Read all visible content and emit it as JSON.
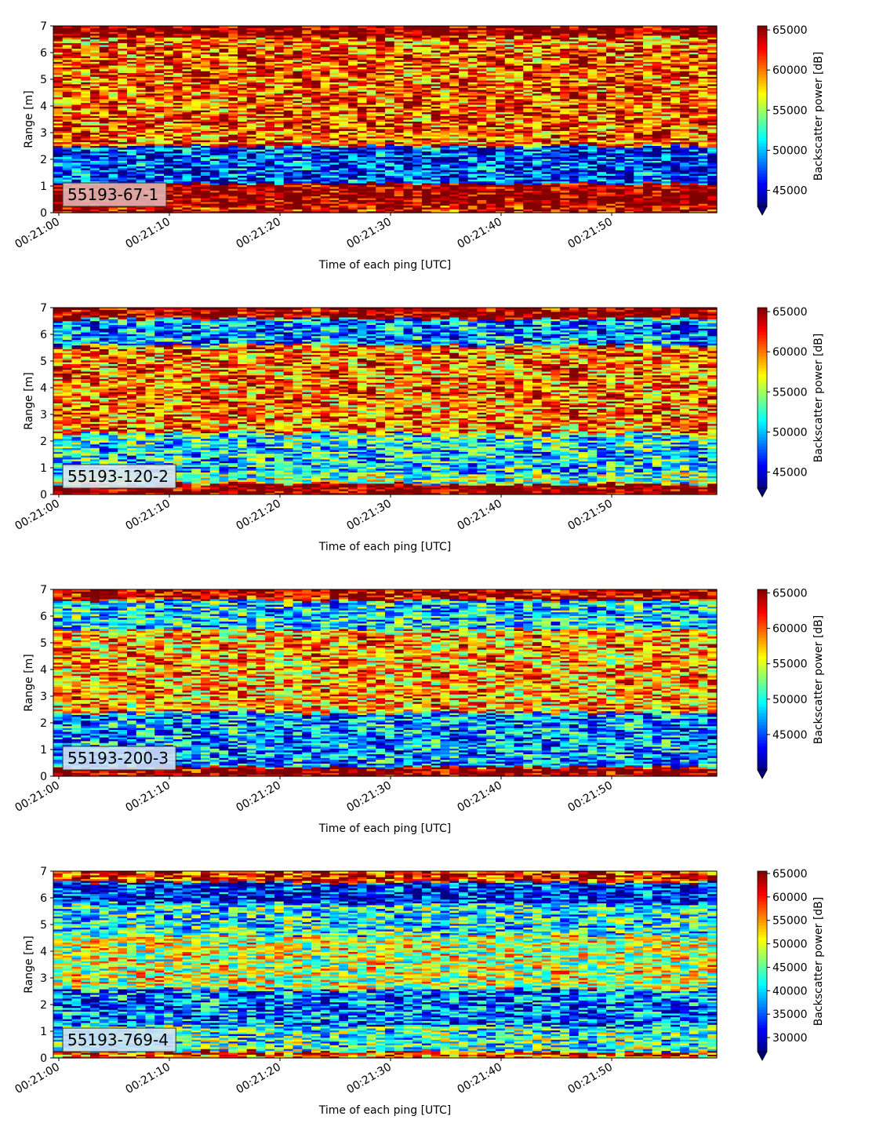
{
  "chart_data": [
    {
      "type": "heatmap",
      "label": "55193-67-1",
      "xlabel": "Time of each ping [UTC]",
      "ylabel": "Range [m]",
      "colorbar_label": "Backscatter power [dB]",
      "x_ticks": [
        "00:21:00",
        "00:21:10",
        "00:21:20",
        "00:21:30",
        "00:21:40",
        "00:21:50"
      ],
      "y_ticks": [
        0,
        1,
        2,
        3,
        4,
        5,
        6,
        7
      ],
      "ylim": [
        0,
        7
      ],
      "color_range": [
        43000,
        65500
      ],
      "colorbar_ticks": [
        45000,
        50000,
        55000,
        60000,
        65000
      ],
      "bands": [
        {
          "y": [
            0.0,
            0.22
          ],
          "value": 64000
        },
        {
          "y": [
            0.22,
            1.1
          ],
          "value": 66000
        },
        {
          "y": [
            1.1,
            2.5
          ],
          "value": 47000
        },
        {
          "y": [
            2.5,
            6.2
          ],
          "value": 61000
        },
        {
          "y": [
            6.2,
            6.6
          ],
          "value": 60000
        },
        {
          "y": [
            6.6,
            7.0
          ],
          "value": 66000
        }
      ],
      "label_bg": "#e3b3b3"
    },
    {
      "type": "heatmap",
      "label": "55193-120-2",
      "xlabel": "Time of each ping [UTC]",
      "ylabel": "Range [m]",
      "colorbar_label": "Backscatter power [dB]",
      "x_ticks": [
        "00:21:00",
        "00:21:10",
        "00:21:20",
        "00:21:30",
        "00:21:40",
        "00:21:50"
      ],
      "y_ticks": [
        0,
        1,
        2,
        3,
        4,
        5,
        6,
        7
      ],
      "ylim": [
        0,
        7
      ],
      "color_range": [
        43000,
        65500
      ],
      "colorbar_ticks": [
        45000,
        50000,
        55000,
        60000,
        65000
      ],
      "bands": [
        {
          "y": [
            0.0,
            0.4
          ],
          "value": 66000
        },
        {
          "y": [
            0.4,
            0.8
          ],
          "value": 54000
        },
        {
          "y": [
            0.8,
            1.8
          ],
          "value": 51000
        },
        {
          "y": [
            1.8,
            2.3
          ],
          "value": 52000
        },
        {
          "y": [
            2.3,
            5.6
          ],
          "value": 60000
        },
        {
          "y": [
            5.6,
            6.6
          ],
          "value": 49000
        },
        {
          "y": [
            6.6,
            7.0
          ],
          "value": 65500
        }
      ],
      "label_bg": "#dde8f4"
    },
    {
      "type": "heatmap",
      "label": "55193-200-3",
      "xlabel": "Time of each ping [UTC]",
      "ylabel": "Range [m]",
      "colorbar_label": "Backscatter power [dB]",
      "x_ticks": [
        "00:21:00",
        "00:21:10",
        "00:21:20",
        "00:21:30",
        "00:21:40",
        "00:21:50"
      ],
      "y_ticks": [
        0,
        1,
        2,
        3,
        4,
        5,
        6,
        7
      ],
      "ylim": [
        0,
        7
      ],
      "color_range": [
        40000,
        65500
      ],
      "colorbar_ticks": [
        45000,
        50000,
        55000,
        60000,
        65000
      ],
      "bands": [
        {
          "y": [
            0.0,
            0.35
          ],
          "value": 66000
        },
        {
          "y": [
            0.35,
            0.9
          ],
          "value": 47000
        },
        {
          "y": [
            0.9,
            2.4
          ],
          "value": 47000
        },
        {
          "y": [
            2.4,
            5.5
          ],
          "value": 58000
        },
        {
          "y": [
            5.5,
            6.6
          ],
          "value": 49000
        },
        {
          "y": [
            6.6,
            7.0
          ],
          "value": 64500
        }
      ],
      "label_bg": "#cfe2f7"
    },
    {
      "type": "heatmap",
      "label": "55193-769-4",
      "xlabel": "Time of each ping [UTC]",
      "ylabel": "Range [m]",
      "colorbar_label": "Backscatter power [dB]",
      "x_ticks": [
        "00:21:00",
        "00:21:10",
        "00:21:20",
        "00:21:30",
        "00:21:40",
        "00:21:50"
      ],
      "y_ticks": [
        0,
        1,
        2,
        3,
        4,
        5,
        6,
        7
      ],
      "ylim": [
        0,
        7
      ],
      "color_range": [
        27000,
        65500
      ],
      "colorbar_ticks": [
        30000,
        35000,
        40000,
        45000,
        50000,
        55000,
        60000,
        65000
      ],
      "bands": [
        {
          "y": [
            0.0,
            0.1
          ],
          "value": 55000
        },
        {
          "y": [
            0.1,
            0.25
          ],
          "value": 60000
        },
        {
          "y": [
            0.25,
            1.2
          ],
          "value": 43000
        },
        {
          "y": [
            1.2,
            2.6
          ],
          "value": 36000
        },
        {
          "y": [
            2.6,
            4.6
          ],
          "value": 49000
        },
        {
          "y": [
            4.6,
            5.8
          ],
          "value": 42000
        },
        {
          "y": [
            5.8,
            6.6
          ],
          "value": 32000
        },
        {
          "y": [
            6.6,
            7.0
          ],
          "value": 60000
        }
      ],
      "label_bg": "#cfe2f7"
    }
  ]
}
